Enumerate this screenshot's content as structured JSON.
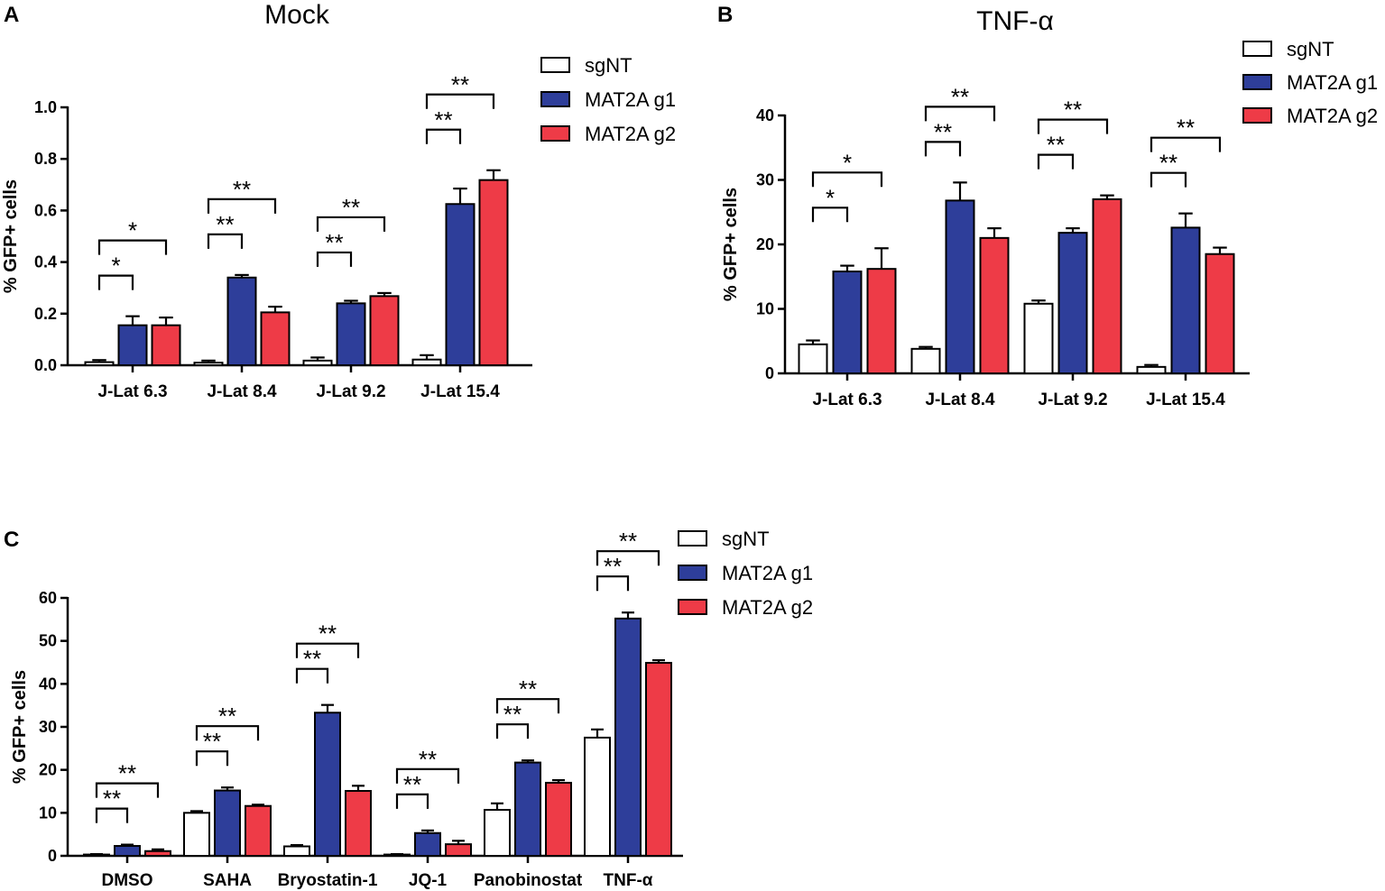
{
  "colors": {
    "sgNT": "#ffffff",
    "MAT2A g1": "#2e3e9a",
    "MAT2A g2": "#ee3b47",
    "axis": "#000000"
  },
  "chart_data": [
    {
      "panel": "A",
      "type": "bar",
      "title": "Mock",
      "ylabel": "% GFP+ cells",
      "xlabel": "",
      "ylim": [
        0,
        1.0
      ],
      "yticks": [
        "0.0",
        "0.2",
        "0.4",
        "0.6",
        "0.8",
        "1.0"
      ],
      "categories": [
        "J-Lat 6.3",
        "J-Lat 8.4",
        "J-Lat 9.2",
        "J-Lat 15.4"
      ],
      "series": [
        {
          "name": "sgNT",
          "values": [
            0.012,
            0.01,
            0.018,
            0.022
          ],
          "errors": [
            0.008,
            0.008,
            0.012,
            0.017
          ]
        },
        {
          "name": "MAT2A g1",
          "values": [
            0.155,
            0.34,
            0.24,
            0.625
          ],
          "errors": [
            0.035,
            0.01,
            0.01,
            0.06
          ]
        },
        {
          "name": "MAT2A g2",
          "values": [
            0.155,
            0.205,
            0.268,
            0.718
          ],
          "errors": [
            0.03,
            0.022,
            0.012,
            0.038
          ]
        }
      ],
      "legend": [
        "sgNT",
        "MAT2A g1",
        "MAT2A g2"
      ],
      "significance": [
        {
          "category": 0,
          "to": "MAT2A g1",
          "label": "*"
        },
        {
          "category": 0,
          "to": "MAT2A g2",
          "label": "*"
        },
        {
          "category": 1,
          "to": "MAT2A g1",
          "label": "**"
        },
        {
          "category": 1,
          "to": "MAT2A g2",
          "label": "**"
        },
        {
          "category": 2,
          "to": "MAT2A g1",
          "label": "**"
        },
        {
          "category": 2,
          "to": "MAT2A g2",
          "label": "**"
        },
        {
          "category": 3,
          "to": "MAT2A g1",
          "label": "**"
        },
        {
          "category": 3,
          "to": "MAT2A g2",
          "label": "**"
        }
      ]
    },
    {
      "panel": "B",
      "type": "bar",
      "title": "TNF-α",
      "ylabel": "% GFP+ cells",
      "xlabel": "",
      "ylim": [
        0,
        40
      ],
      "yticks": [
        "0",
        "10",
        "20",
        "30",
        "40"
      ],
      "categories": [
        "J-Lat 6.3",
        "J-Lat 8.4",
        "J-Lat 9.2",
        "J-Lat 15.4"
      ],
      "series": [
        {
          "name": "sgNT",
          "values": [
            4.5,
            3.8,
            10.8,
            1.0
          ],
          "errors": [
            0.6,
            0.3,
            0.5,
            0.3
          ]
        },
        {
          "name": "MAT2A g1",
          "values": [
            15.8,
            26.8,
            21.8,
            22.6
          ],
          "errors": [
            0.9,
            2.8,
            0.7,
            2.2
          ]
        },
        {
          "name": "MAT2A g2",
          "values": [
            16.2,
            21.0,
            27.0,
            18.5
          ],
          "errors": [
            3.2,
            1.5,
            0.6,
            1.0
          ]
        }
      ],
      "legend": [
        "sgNT",
        "MAT2A g1",
        "MAT2A g2"
      ],
      "significance": [
        {
          "category": 0,
          "to": "MAT2A g1",
          "label": "*"
        },
        {
          "category": 0,
          "to": "MAT2A g2",
          "label": "*"
        },
        {
          "category": 1,
          "to": "MAT2A g1",
          "label": "**"
        },
        {
          "category": 1,
          "to": "MAT2A g2",
          "label": "**"
        },
        {
          "category": 2,
          "to": "MAT2A g1",
          "label": "**"
        },
        {
          "category": 2,
          "to": "MAT2A g2",
          "label": "**"
        },
        {
          "category": 3,
          "to": "MAT2A g1",
          "label": "**"
        },
        {
          "category": 3,
          "to": "MAT2A g2",
          "label": "**"
        }
      ]
    },
    {
      "panel": "C",
      "type": "bar",
      "title": "",
      "ylabel": "% GFP+ cells",
      "xlabel": "",
      "ylim": [
        0,
        60
      ],
      "yticks": [
        "0",
        "10",
        "20",
        "30",
        "40",
        "50",
        "60"
      ],
      "categories": [
        "DMSO",
        "SAHA",
        "Bryostatin-1",
        "JQ-1",
        "Panobinostat",
        "TNF-α"
      ],
      "series": [
        {
          "name": "sgNT",
          "values": [
            0.3,
            10.0,
            2.2,
            0.3,
            10.7,
            27.5
          ],
          "errors": [
            0.1,
            0.4,
            0.3,
            0.1,
            1.5,
            1.9
          ]
        },
        {
          "name": "MAT2A g1",
          "values": [
            2.3,
            15.2,
            33.3,
            5.3,
            21.7,
            55.2
          ],
          "errors": [
            0.3,
            0.7,
            1.8,
            0.6,
            0.5,
            1.4
          ]
        },
        {
          "name": "MAT2A g2",
          "values": [
            1.1,
            11.6,
            15.1,
            2.7,
            17.0,
            44.9
          ],
          "errors": [
            0.4,
            0.3,
            1.2,
            0.8,
            0.6,
            0.6
          ]
        }
      ],
      "legend": [
        "sgNT",
        "MAT2A g1",
        "MAT2A g2"
      ],
      "significance": [
        {
          "category": 0,
          "to": "MAT2A g1",
          "label": "**"
        },
        {
          "category": 0,
          "to": "MAT2A g2",
          "label": "**"
        },
        {
          "category": 1,
          "to": "MAT2A g1",
          "label": "**"
        },
        {
          "category": 1,
          "to": "MAT2A g2",
          "label": "**"
        },
        {
          "category": 2,
          "to": "MAT2A g1",
          "label": "**"
        },
        {
          "category": 2,
          "to": "MAT2A g2",
          "label": "**"
        },
        {
          "category": 3,
          "to": "MAT2A g1",
          "label": "**"
        },
        {
          "category": 3,
          "to": "MAT2A g2",
          "label": "**"
        },
        {
          "category": 4,
          "to": "MAT2A g1",
          "label": "**"
        },
        {
          "category": 4,
          "to": "MAT2A g2",
          "label": "**"
        },
        {
          "category": 5,
          "to": "MAT2A g1",
          "label": "**"
        },
        {
          "category": 5,
          "to": "MAT2A g2",
          "label": "**"
        }
      ]
    }
  ]
}
